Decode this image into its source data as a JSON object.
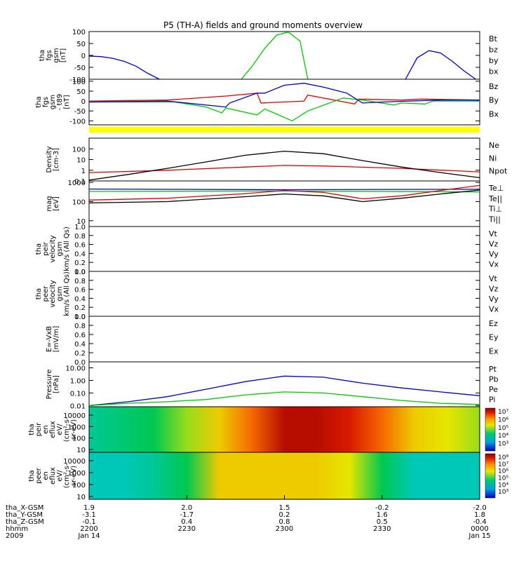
{
  "title": "P5 (TH-A) fields and ground moments overview",
  "colors": {
    "red": "#e00000",
    "green": "#00c800",
    "blue": "#0000d0",
    "black": "#000000",
    "yellow": "#ffff00"
  },
  "time_labels": [
    "2200",
    "2230",
    "2300",
    "2330",
    "0000"
  ],
  "date_labels": {
    "year": "2009",
    "start": "Jan 14",
    "end": "Jan 15"
  },
  "ephemeris": [
    {
      "name": "tha_X-GSM",
      "values": [
        "1.9",
        "2.0",
        "1.5",
        "-0.2",
        "-2.0"
      ]
    },
    {
      "name": "tha_Y-GSM",
      "values": [
        "-3.1",
        "-1.7",
        "0.2",
        "1.6",
        "1.8"
      ]
    },
    {
      "name": "tha_Z-GSM",
      "values": [
        "-0.1",
        "0.4",
        "0.8",
        "0.5",
        "-0.4"
      ]
    },
    {
      "name": "hhmm",
      "values": [
        "2200",
        "2230",
        "2300",
        "2330",
        "0000"
      ]
    }
  ],
  "colorbar_labels": {
    "peir": [
      "10⁷",
      "10⁶",
      "10⁵",
      "10⁴",
      "10³"
    ],
    "peer": [
      "10⁸",
      "10⁷",
      "10⁶",
      "10⁵",
      "10⁴",
      "10³"
    ]
  },
  "chart_data": [
    {
      "id": "fgs",
      "type": "line",
      "ylabel": [
        "tha",
        "fgs",
        "gsm",
        "[nT]"
      ],
      "yticks": [
        "100",
        "50",
        "0",
        "-50",
        "-100"
      ],
      "ylim": [
        -100,
        100
      ],
      "legend": [
        {
          "name": "Bt",
          "color": "#000000"
        },
        {
          "name": "bz",
          "color": "#e00000"
        },
        {
          "name": "by",
          "color": "#00c800"
        },
        {
          "name": "bx",
          "color": "#0000d0"
        }
      ],
      "series": [
        {
          "name": "bx",
          "color": "#0000d0",
          "x": [
            0,
            0.03,
            0.06,
            0.09,
            0.12,
            0.15,
            0.18
          ],
          "y": [
            -3,
            -5,
            -12,
            -25,
            -45,
            -75,
            -100
          ]
        },
        {
          "name": "by",
          "color": "#00c800",
          "x": [
            0.39,
            0.42,
            0.45,
            0.48,
            0.51,
            0.54,
            0.56
          ],
          "y": [
            -100,
            -40,
            30,
            85,
            98,
            60,
            -100
          ]
        },
        {
          "name": "bx",
          "color": "#0000d0",
          "x": [
            0.81,
            0.84,
            0.87,
            0.9,
            0.93,
            0.96,
            0.99
          ],
          "y": [
            -100,
            -10,
            20,
            10,
            -25,
            -65,
            -100
          ]
        }
      ]
    },
    {
      "id": "fgs-t89",
      "type": "line",
      "ylabel": [
        "tha",
        "fgs",
        "gsm",
        "- t89",
        "[nT]"
      ],
      "yticks": [
        "100",
        "50",
        "0",
        "-50",
        "-100"
      ],
      "ylim": [
        -120,
        110
      ],
      "legend": [
        {
          "name": "Bz",
          "color": "#e00000"
        },
        {
          "name": "By",
          "color": "#00c800"
        },
        {
          "name": "Bx",
          "color": "#0000d0"
        }
      ],
      "series": [
        {
          "name": "Bz",
          "color": "#e00000",
          "x": [
            0,
            0.2,
            0.35,
            0.43,
            0.44,
            0.55,
            0.56,
            0.68,
            0.69,
            0.8,
            0.85,
            1.0
          ],
          "y": [
            0,
            5,
            25,
            40,
            -10,
            0,
            30,
            -15,
            10,
            5,
            10,
            5
          ]
        },
        {
          "name": "By",
          "color": "#00c800",
          "x": [
            0,
            0.22,
            0.3,
            0.34,
            0.35,
            0.43,
            0.45,
            0.52,
            0.56,
            0.65,
            0.7,
            0.78,
            0.8,
            0.86,
            0.88,
            1.0
          ],
          "y": [
            -5,
            -5,
            -30,
            -60,
            -35,
            -70,
            -40,
            -100,
            -50,
            15,
            5,
            -20,
            -10,
            -15,
            0,
            0
          ]
        },
        {
          "name": "Bx",
          "color": "#0000d0",
          "x": [
            0,
            0.2,
            0.35,
            0.36,
            0.43,
            0.45,
            0.5,
            0.55,
            0.6,
            0.66,
            0.7,
            0.75,
            0.82,
            0.9,
            1.0
          ],
          "y": [
            -5,
            0,
            -30,
            -10,
            40,
            40,
            80,
            90,
            70,
            40,
            -10,
            -5,
            0,
            5,
            5
          ]
        }
      ]
    },
    {
      "id": "density",
      "type": "line",
      "ylabel": [
        "Density",
        "[cm-3]"
      ],
      "yticks": [
        "100",
        "10",
        "1",
        "0.1"
      ],
      "ylog": [
        0.1,
        1000
      ],
      "legend": [
        {
          "name": "Ne",
          "color": "#e00000"
        },
        {
          "name": "Ni",
          "color": "#000000"
        },
        {
          "name": "Npot",
          "color": "#0000d0"
        }
      ],
      "series": [
        {
          "name": "Ne",
          "color": "#e00000",
          "x": [
            0,
            0.2,
            0.4,
            0.5,
            0.6,
            0.8,
            1.0
          ],
          "y": [
            0.6,
            1.0,
            2.0,
            2.8,
            2.5,
            1.5,
            0.7
          ]
        },
        {
          "name": "Ni",
          "color": "#000000",
          "x": [
            0,
            0.1,
            0.2,
            0.3,
            0.4,
            0.5,
            0.6,
            0.7,
            0.8,
            0.9,
            1.0
          ],
          "y": [
            0.12,
            0.4,
            1.5,
            6,
            25,
            60,
            35,
            8,
            2,
            0.6,
            0.2
          ]
        }
      ]
    },
    {
      "id": "temperature",
      "type": "line",
      "ylabel": [
        "mag",
        "[eV]"
      ],
      "yticks": [
        "1000",
        "100",
        "10"
      ],
      "ylog": [
        5,
        1200
      ],
      "legend": [
        {
          "name": "Te⊥",
          "color": "#e00000"
        },
        {
          "name": "Te||",
          "color": "#000000"
        },
        {
          "name": "Ti⊥",
          "color": "#0000d0"
        },
        {
          "name": "Ti||",
          "color": "#00c800"
        }
      ],
      "series": [
        {
          "name": "Ti⊥",
          "color": "#0000d0",
          "x": [
            0,
            0.5,
            1.0
          ],
          "y": [
            450,
            420,
            440
          ]
        },
        {
          "name": "Ti||",
          "color": "#00c800",
          "x": [
            0,
            0.5,
            1.0
          ],
          "y": [
            340,
            360,
            320
          ]
        },
        {
          "name": "Te⊥",
          "color": "#e00000",
          "x": [
            0,
            0.2,
            0.4,
            0.5,
            0.6,
            0.7,
            0.8,
            0.9,
            1.0
          ],
          "y": [
            120,
            150,
            260,
            380,
            300,
            140,
            200,
            380,
            700
          ]
        },
        {
          "name": "Te||",
          "color": "#000000",
          "x": [
            0,
            0.2,
            0.4,
            0.5,
            0.6,
            0.7,
            0.8,
            0.9,
            1.0
          ],
          "y": [
            85,
            100,
            180,
            250,
            200,
            100,
            150,
            250,
            400
          ]
        }
      ]
    },
    {
      "id": "peir-velocity",
      "type": "line",
      "ylabel": [
        "tha",
        "peir",
        "velocity",
        "gsm",
        "km/s (All Qs)"
      ],
      "yticks": [
        "1.0",
        "0.8",
        "0.6",
        "0.4",
        "0.2",
        "0.0"
      ],
      "ylim": [
        0,
        1
      ],
      "legend": [
        {
          "name": "Vt",
          "color": "#000000"
        },
        {
          "name": "Vz",
          "color": "#e00000"
        },
        {
          "name": "Vy",
          "color": "#00c800"
        },
        {
          "name": "Vx",
          "color": "#0000d0"
        }
      ],
      "series": []
    },
    {
      "id": "peer-velocity",
      "type": "line",
      "ylabel": [
        "tha",
        "peer",
        "velocity",
        "gsm",
        "km/s (All Qs)"
      ],
      "yticks": [
        "1.0",
        "0.8",
        "0.6",
        "0.4",
        "0.2",
        "0.0"
      ],
      "ylim": [
        0,
        1
      ],
      "legend": [
        {
          "name": "Vt",
          "color": "#000000"
        },
        {
          "name": "Vz",
          "color": "#e00000"
        },
        {
          "name": "Vy",
          "color": "#00c800"
        },
        {
          "name": "Vx",
          "color": "#0000d0"
        }
      ],
      "series": []
    },
    {
      "id": "efield",
      "type": "line",
      "ylabel": [
        "E=-VxB",
        "[mV/m]"
      ],
      "yticks": [
        "1.0",
        "0.8",
        "0.6",
        "0.4",
        "0.2",
        "0.0"
      ],
      "ylim": [
        0,
        1
      ],
      "legend": [
        {
          "name": "Ez",
          "color": "#e00000"
        },
        {
          "name": "Ey",
          "color": "#00c800"
        },
        {
          "name": "Ex",
          "color": "#0000d0"
        }
      ],
      "series": []
    },
    {
      "id": "pressure",
      "type": "line",
      "ylabel": [
        "Pressure",
        "[nPa]"
      ],
      "yticks": [
        "10.00",
        "1.00",
        "0.10",
        "0.01"
      ],
      "ylog": [
        0.008,
        30
      ],
      "legend": [
        {
          "name": "Pt",
          "color": "#000000"
        },
        {
          "name": "Pb",
          "color": "#e00000"
        },
        {
          "name": "Pe",
          "color": "#00c800"
        },
        {
          "name": "Pi",
          "color": "#0000d0"
        }
      ],
      "series": [
        {
          "name": "Pi",
          "color": "#0000d0",
          "x": [
            0,
            0.1,
            0.2,
            0.3,
            0.4,
            0.5,
            0.6,
            0.7,
            0.8,
            0.9,
            1.0
          ],
          "y": [
            0.01,
            0.02,
            0.05,
            0.2,
            0.8,
            2.2,
            1.8,
            0.6,
            0.25,
            0.12,
            0.06
          ]
        },
        {
          "name": "Pe",
          "color": "#00c800",
          "x": [
            0,
            0.1,
            0.2,
            0.3,
            0.4,
            0.5,
            0.6,
            0.7,
            0.8,
            0.9,
            1.0
          ],
          "y": [
            0.01,
            0.015,
            0.02,
            0.03,
            0.07,
            0.12,
            0.1,
            0.05,
            0.025,
            0.015,
            0.012
          ]
        }
      ]
    },
    {
      "id": "peir-eflux",
      "type": "heatmap",
      "ylabel": [
        "tha",
        "peir",
        "en",
        "eflux",
        "eV/",
        "(cm²-s-",
        "sr-eV)"
      ],
      "yticks": [
        "10000",
        "1000",
        "100",
        "10"
      ],
      "profile": [
        0.35,
        0.4,
        0.45,
        0.55,
        0.65,
        0.8,
        0.95,
        0.95,
        0.9,
        0.8,
        0.65,
        0.6,
        0.55
      ]
    },
    {
      "id": "peer-eflux",
      "type": "heatmap",
      "ylabel": [
        "tha",
        "peer",
        "en",
        "eflux",
        "eV/",
        "(cm²-s-",
        "sr-eV)"
      ],
      "yticks": [
        "10000",
        "1000",
        "100",
        "10"
      ],
      "profile": [
        0.3,
        0.3,
        0.35,
        0.45,
        0.65,
        0.65,
        0.65,
        0.65,
        0.6,
        0.45,
        0.3,
        0.3,
        0.3
      ]
    }
  ]
}
